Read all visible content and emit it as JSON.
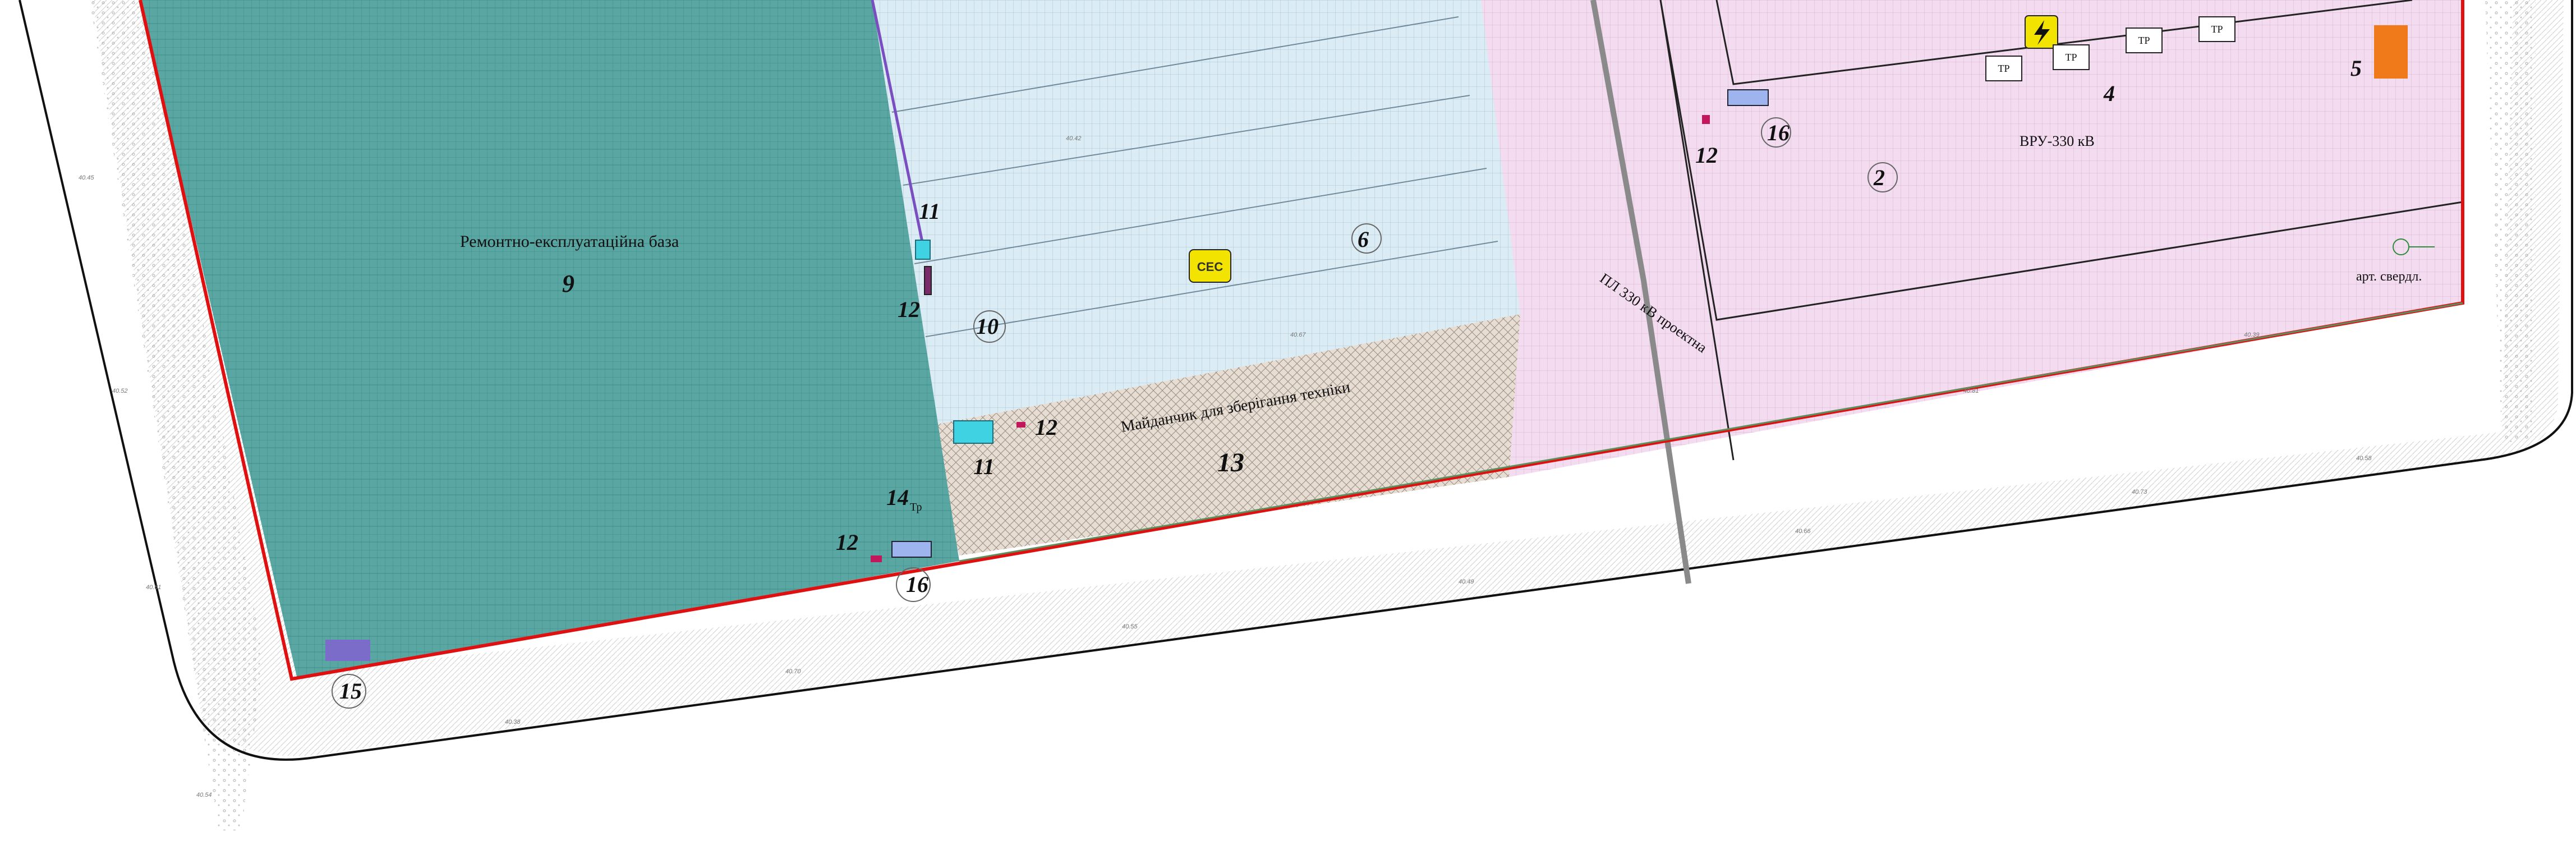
{
  "zones": {
    "repair_base_label": "Ремонтно-експлуатаційна база",
    "parking_label": "Майданчик для зберігання техніки",
    "vru_label": "ВРУ-330 кВ",
    "line_label": "ПЛ 330 кВ проектна",
    "borehole_label": "арт. свердл.",
    "ces_badge": "СЕС",
    "tr_label": "ТР",
    "gate_label": "Тр"
  },
  "numbers": [
    "2",
    "4",
    "5",
    "6",
    "9",
    "10",
    "11",
    "11",
    "12",
    "12",
    "12",
    "12",
    "13",
    "14",
    "15",
    "16",
    "16"
  ],
  "colors": {
    "repair_base": "#5aa6a2",
    "repair_grid": "#3f8d89",
    "solar_field": "#dcecf4",
    "solar_grid": "#a9c6d6",
    "parking": "#e6ddd4",
    "substation": "#f3dcef",
    "substation_grid": "#d9b3d3",
    "boundary": "#e01010",
    "ces_badge": "#f2e400",
    "orange_block": "#f07a1a",
    "cyan_block": "#3fd2e2"
  },
  "icons": [
    "lightning-icon",
    "borehole-icon"
  ],
  "elevations": [
    "40.45",
    "40.52",
    "40.61",
    "40.38",
    "40.70",
    "40.55",
    "40.49",
    "40.66",
    "40.73",
    "40.58",
    "40.42",
    "40.67",
    "40.81",
    "40.39",
    "40.54"
  ]
}
